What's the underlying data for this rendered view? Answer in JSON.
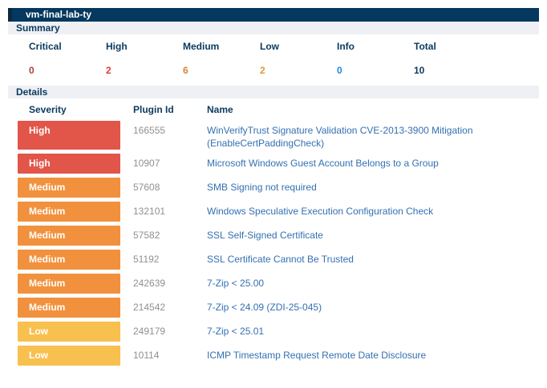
{
  "report": {
    "title": "vm-final-lab-ty",
    "summary": {
      "heading": "Summary",
      "columns": [
        "Critical",
        "High",
        "Medium",
        "Low",
        "Info",
        "Total"
      ],
      "values": [
        "0",
        "2",
        "6",
        "2",
        "0",
        "10"
      ]
    },
    "details": {
      "heading": "Details",
      "columns": {
        "severity": "Severity",
        "plugin_id": "Plugin Id",
        "name": "Name"
      },
      "rows": [
        {
          "severity": "High",
          "plugin_id": "166555",
          "name": "WinVerifyTrust Signature Validation CVE-2013-3900 Mitigation (EnableCertPaddingCheck)"
        },
        {
          "severity": "High",
          "plugin_id": "10907",
          "name": "Microsoft Windows Guest Account Belongs to a Group"
        },
        {
          "severity": "Medium",
          "plugin_id": "57608",
          "name": "SMB Signing not required"
        },
        {
          "severity": "Medium",
          "plugin_id": "132101",
          "name": "Windows Speculative Execution Configuration Check"
        },
        {
          "severity": "Medium",
          "plugin_id": "57582",
          "name": "SSL Self-Signed Certificate"
        },
        {
          "severity": "Medium",
          "plugin_id": "51192",
          "name": "SSL Certificate Cannot Be Trusted"
        },
        {
          "severity": "Medium",
          "plugin_id": "242639",
          "name": "7-Zip < 25.00"
        },
        {
          "severity": "Medium",
          "plugin_id": "214542",
          "name": "7-Zip < 24.09 (ZDI-25-045)"
        },
        {
          "severity": "Low",
          "plugin_id": "249179",
          "name": "7-Zip < 25.01"
        },
        {
          "severity": "Low",
          "plugin_id": "10114",
          "name": "ICMP Timestamp Request Remote Date Disclosure"
        }
      ]
    },
    "colors": {
      "titlebar_bg": "#04385e",
      "band_bg": "#eef0f4",
      "heading_text": "#0b3a5e",
      "severity_high": "#e25549",
      "severity_medium": "#f2913d",
      "severity_low": "#f8c04e",
      "count_critical": "#a8433a",
      "count_high": "#e23b32",
      "count_medium": "#d9842e",
      "count_low": "#d2a033",
      "count_info": "#2287d6",
      "count_total": "#0b3a5e",
      "plugin_id_text": "#909090",
      "name_link_text": "#3470b2"
    }
  }
}
